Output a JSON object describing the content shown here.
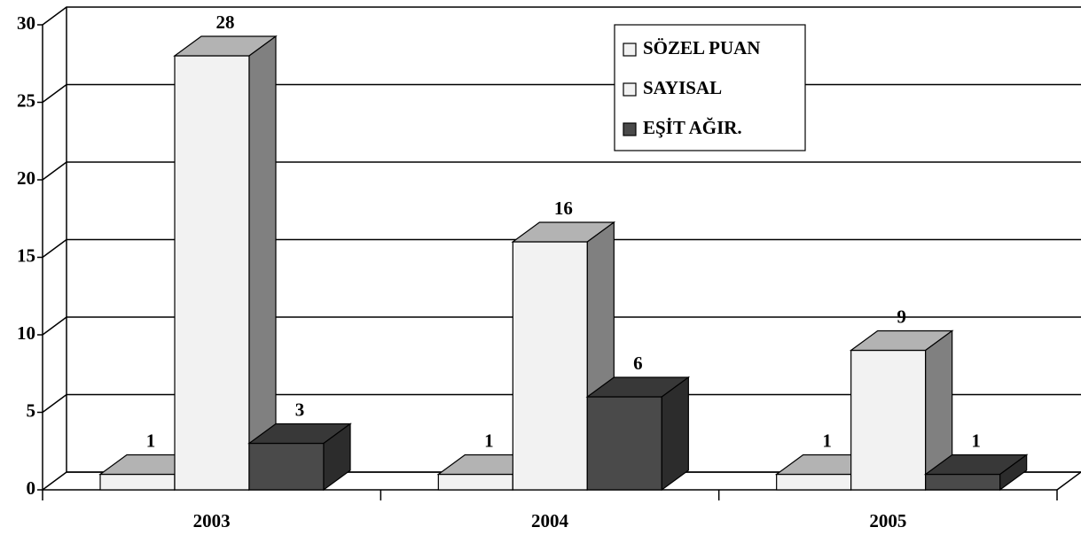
{
  "chart_data": {
    "type": "bar3d",
    "categories": [
      "2003",
      "2004",
      "2005"
    ],
    "series": [
      {
        "name": "SÖZEL PUAN",
        "color": "#f2f2f2",
        "values": [
          1,
          1,
          1
        ]
      },
      {
        "name": "SAYISAL",
        "color": "#f2f2f2",
        "values": [
          28,
          16,
          9
        ]
      },
      {
        "name": "EŞİT AĞIR.",
        "color": "#4a4a4a",
        "values": [
          3,
          6,
          1
        ]
      }
    ],
    "ylim": [
      0,
      30
    ],
    "yticks": [
      0,
      5,
      10,
      15,
      20,
      25,
      30
    ],
    "grid": true,
    "legend": "top-right"
  }
}
